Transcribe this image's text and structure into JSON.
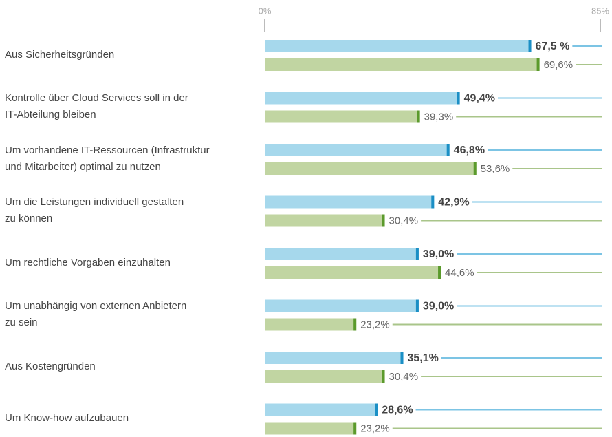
{
  "chart_data": {
    "type": "hbar",
    "categories": [
      "Aus Sicherheitsgründen",
      "Kontrolle über Cloud Services soll in der\nIT-Abteilung bleiben",
      "Um vorhandene IT-Ressourcen (Infrastruktur\nund Mitarbeiter) optimal zu nutzen",
      "Um die Leistungen individuell gestalten\nzu können",
      "Um rechtliche Vorgaben einzuhalten",
      "Um unabhängig von externen Anbietern\nzu sein",
      "Aus Kostengründen",
      "Um Know-how aufzubauen"
    ],
    "series": [
      {
        "color": "#a6d8ec",
        "marker_color": "#1b8fc5",
        "bold": true,
        "values": [
          67.5,
          49.4,
          46.8,
          42.9,
          39.0,
          39.0,
          35.1,
          28.6
        ],
        "value_labels": [
          "67,5 %",
          "49,4%",
          "46,8%",
          "42,9%",
          "39,0%",
          "39,0%",
          "35,1%",
          "28,6%"
        ]
      },
      {
        "color": "#c1d5a2",
        "marker_color": "#5b9a2c",
        "bold": false,
        "values": [
          69.6,
          39.3,
          53.6,
          30.4,
          44.6,
          23.2,
          30.4,
          23.2
        ],
        "value_labels": [
          "69,6%",
          "39,3%",
          "53,6%",
          "30,4%",
          "44,6%",
          "23,2%",
          "30,4%",
          "23,2%"
        ]
      }
    ],
    "xlim": [
      0,
      85
    ],
    "xticks": [
      {
        "value": 0,
        "label": "0%"
      },
      {
        "value": 85,
        "label": "85%"
      }
    ]
  }
}
